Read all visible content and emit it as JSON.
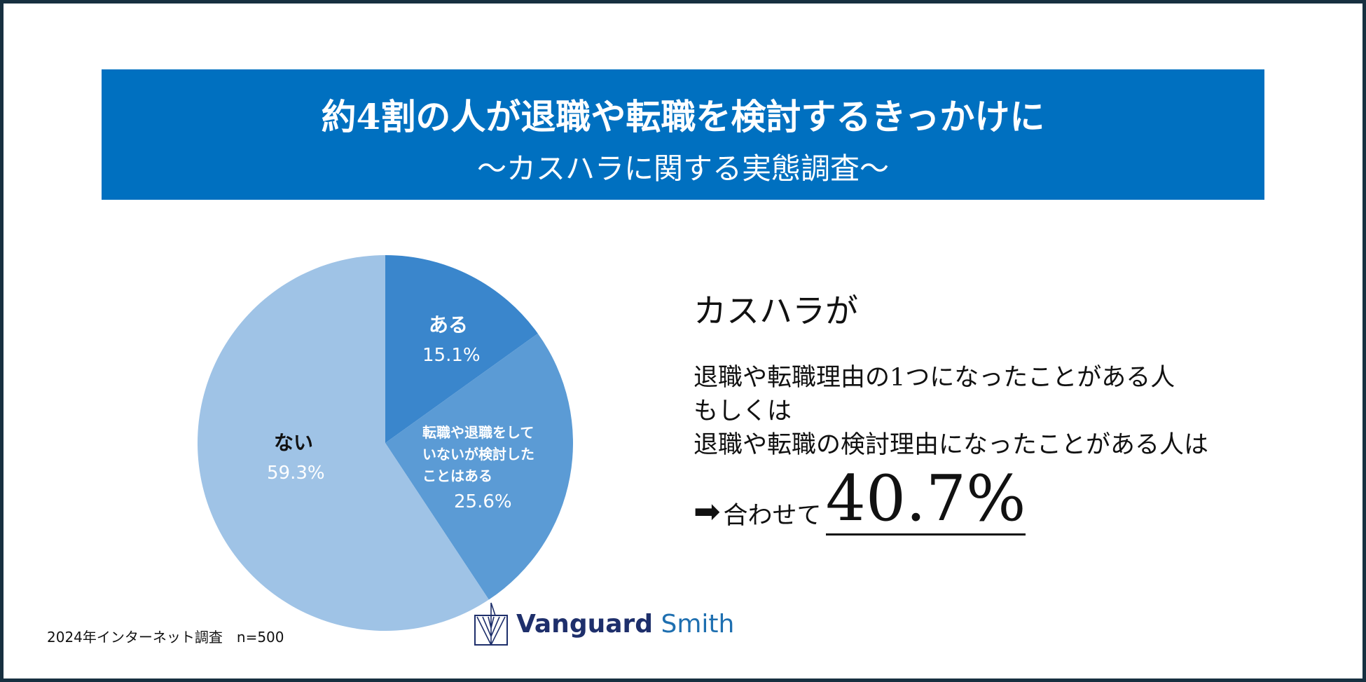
{
  "banner": {
    "title": "約4割の人が退職や転職を検討するきっかけに",
    "subtitle": "〜カスハラに関する実態調査〜"
  },
  "chart_data": {
    "type": "pie",
    "categories": [
      "ある",
      "転職や退職をしていないが検討したことはある",
      "ない"
    ],
    "values": [
      15.1,
      25.6,
      59.3
    ],
    "value_labels": [
      "15.1%",
      "25.6%",
      "59.3%"
    ],
    "slice_colors": [
      "#3a86cc",
      "#5b9bd5",
      "#9fc3e6"
    ],
    "label_lines": {
      "mid": [
        "転職や退職をして",
        "いないが検討した",
        "ことはある"
      ]
    }
  },
  "right": {
    "heading": "カスハラが",
    "lines": [
      "退職や転職理由の1つになったことがある人",
      "もしくは",
      "退職や転職の検討理由になったことがある人は"
    ],
    "arrow": "➡",
    "together": "合わせて",
    "total": "40.7%"
  },
  "footer": {
    "source": "2024年インターネット調査　n=500",
    "logo_word1": "Vanguard",
    "logo_word2": " Smith"
  },
  "colors": {
    "banner": "#0070c0",
    "frame": "#173040",
    "logo_dark": "#1e2f6b",
    "logo_light": "#1e6fb0"
  },
  "icons": [
    "arrow-right-icon",
    "vanguard-logo-icon"
  ]
}
